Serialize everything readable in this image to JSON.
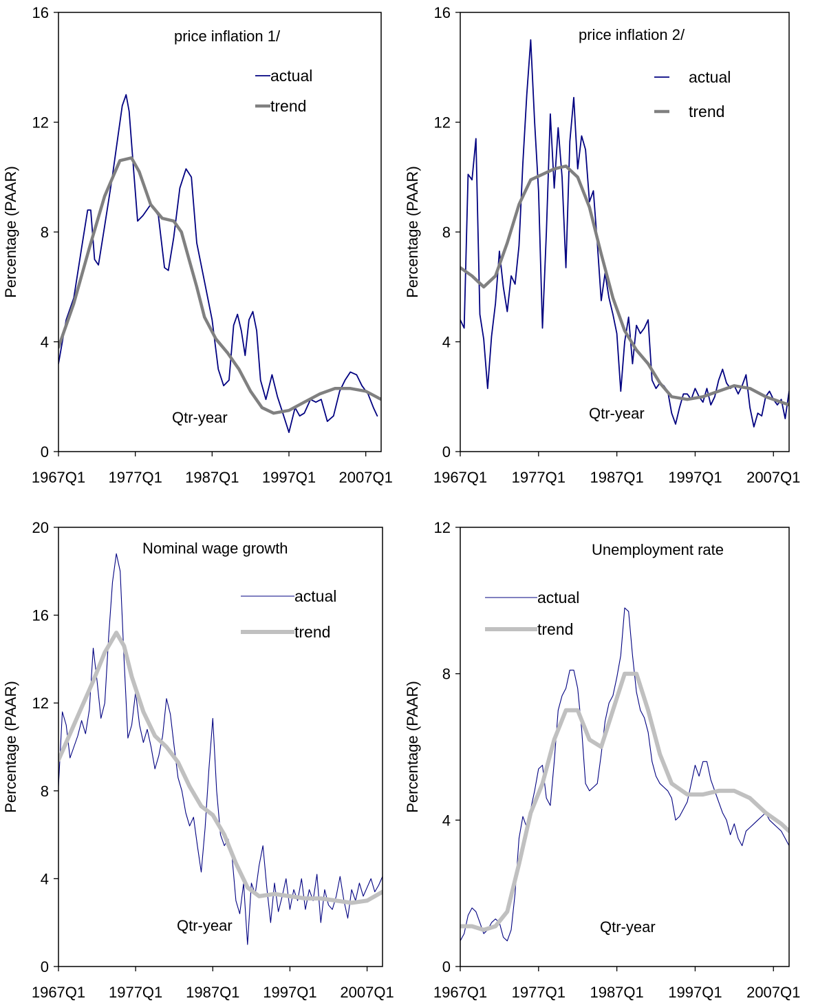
{
  "colors": {
    "actual": "#000080",
    "trend_dark": "#808080",
    "trend_light": "#c0c0c0"
  },
  "chart_data": [
    {
      "type": "line",
      "title": "price inflation 1/",
      "ylabel": "Percentage (PAAR)",
      "axis_note": "Qtr-year",
      "ylim": [
        0,
        16
      ],
      "yticks": [
        "0",
        "4",
        "8",
        "12",
        "16"
      ],
      "xlim": [
        1967,
        2009
      ],
      "xtick_labels": [
        "1967Q1",
        "1977Q1",
        "1987Q1",
        "1997Q1",
        "2007Q1"
      ],
      "xtick_values": [
        1967,
        1977,
        1987,
        1997,
        2007
      ],
      "legend_labels": [
        "actual",
        "trend"
      ],
      "trend_style": "dark",
      "series": [
        {
          "name": "actual",
          "x": [
            1967.0,
            1968.0,
            1969.0,
            1970.0,
            1970.8,
            1971.2,
            1971.7,
            1972.2,
            1973.0,
            1974.0,
            1974.8,
            1975.3,
            1975.8,
            1976.2,
            1976.8,
            1977.3,
            1978.0,
            1979.0,
            1980.0,
            1980.8,
            1981.3,
            1982.0,
            1982.8,
            1983.6,
            1984.3,
            1985.0,
            1986.0,
            1987.0,
            1987.8,
            1988.5,
            1989.2,
            1989.8,
            1990.3,
            1990.8,
            1991.3,
            1991.8,
            1992.3,
            1992.8,
            1993.3,
            1994.0,
            1994.8,
            1995.5,
            1996.2,
            1997.0,
            1997.8,
            1998.4,
            1999.0,
            1999.8,
            2000.5,
            2001.2,
            2002.0,
            2002.8,
            2003.6,
            2004.3,
            2005.0,
            2005.8,
            2006.5,
            2007.3,
            2008.0,
            2008.5
          ],
          "y": [
            3.2,
            4.8,
            5.6,
            7.4,
            8.8,
            8.8,
            7.0,
            6.8,
            8.2,
            10.0,
            11.6,
            12.6,
            13.0,
            12.4,
            10.2,
            8.4,
            8.6,
            9.0,
            8.6,
            6.7,
            6.6,
            7.8,
            9.6,
            10.3,
            10.0,
            7.6,
            6.2,
            4.8,
            3.0,
            2.4,
            2.6,
            4.6,
            5.0,
            4.4,
            3.5,
            4.8,
            5.1,
            4.4,
            2.6,
            1.9,
            2.8,
            2.0,
            1.4,
            0.7,
            1.6,
            1.3,
            1.4,
            1.9,
            1.8,
            1.9,
            1.1,
            1.3,
            2.2,
            2.6,
            2.9,
            2.8,
            2.4,
            2.1,
            1.6,
            1.3
          ]
        },
        {
          "name": "trend",
          "x": [
            1967,
            1969,
            1971,
            1973,
            1975,
            1976.5,
            1977.5,
            1979,
            1980.5,
            1982,
            1983,
            1984,
            1985,
            1986,
            1987.5,
            1989,
            1990.5,
            1992,
            1993.5,
            1995,
            1997,
            1999,
            2001,
            2003,
            2005,
            2007,
            2009
          ],
          "y": [
            3.8,
            5.4,
            7.4,
            9.3,
            10.6,
            10.7,
            10.2,
            9.0,
            8.5,
            8.4,
            8.0,
            7.0,
            6.0,
            4.9,
            4.1,
            3.6,
            3.0,
            2.2,
            1.6,
            1.4,
            1.5,
            1.8,
            2.1,
            2.3,
            2.3,
            2.2,
            1.9
          ]
        }
      ]
    },
    {
      "type": "line",
      "title": "price inflation 2/",
      "ylabel": "Percentage (PAAR)",
      "axis_note": "Qtr-year",
      "ylim": [
        0,
        16
      ],
      "yticks": [
        "0",
        "4",
        "8",
        "12",
        "16"
      ],
      "xlim": [
        1967,
        2009
      ],
      "xtick_labels": [
        "1967Q1",
        "1977Q1",
        "1987Q1",
        "1997Q1",
        "2007Q1"
      ],
      "xtick_values": [
        1967,
        1977,
        1987,
        1997,
        2007
      ],
      "legend_labels": [
        "actual",
        "trend"
      ],
      "trend_style": "dark",
      "series": [
        {
          "name": "actual",
          "x": [
            1967.0,
            1967.5,
            1968.0,
            1968.5,
            1969.0,
            1969.5,
            1970.0,
            1970.5,
            1971.0,
            1971.5,
            1972.0,
            1972.5,
            1973.0,
            1973.5,
            1974.0,
            1974.5,
            1975.0,
            1975.5,
            1976.0,
            1976.5,
            1977.0,
            1977.5,
            1978.0,
            1978.5,
            1979.0,
            1979.5,
            1980.0,
            1980.5,
            1981.0,
            1981.5,
            1982.0,
            1982.5,
            1983.0,
            1983.5,
            1984.0,
            1984.5,
            1985.0,
            1985.5,
            1986.0,
            1986.5,
            1987.0,
            1987.5,
            1988.0,
            1988.5,
            1989.0,
            1989.5,
            1990.0,
            1990.5,
            1991.0,
            1991.5,
            1992.0,
            1992.5,
            1993.0,
            1993.5,
            1994.0,
            1994.5,
            1995.0,
            1995.5,
            1996.0,
            1996.5,
            1997.0,
            1997.5,
            1998.0,
            1998.5,
            1999.0,
            1999.5,
            2000.0,
            2000.5,
            2001.0,
            2001.5,
            2002.0,
            2002.5,
            2003.0,
            2003.5,
            2004.0,
            2004.5,
            2005.0,
            2005.5,
            2006.0,
            2006.5,
            2007.0,
            2007.5,
            2008.0,
            2008.5,
            2009.0
          ],
          "y": [
            4.8,
            4.5,
            10.1,
            9.9,
            11.4,
            5.0,
            4.1,
            2.3,
            4.2,
            5.4,
            7.3,
            6.0,
            5.1,
            6.4,
            6.1,
            7.5,
            10.5,
            13.0,
            15.0,
            12.0,
            9.5,
            4.5,
            8.0,
            12.3,
            9.6,
            11.8,
            10.0,
            6.7,
            11.3,
            12.9,
            10.3,
            11.5,
            11.0,
            9.1,
            9.5,
            7.6,
            5.5,
            6.5,
            5.6,
            5.0,
            4.3,
            2.2,
            4.0,
            4.9,
            3.2,
            4.6,
            4.3,
            4.5,
            4.8,
            2.6,
            2.3,
            2.5,
            2.4,
            2.2,
            1.4,
            1.0,
            1.6,
            2.1,
            2.1,
            1.9,
            2.3,
            2.0,
            1.8,
            2.3,
            1.7,
            2.0,
            2.6,
            3.0,
            2.5,
            2.3,
            2.4,
            2.1,
            2.4,
            2.8,
            1.6,
            0.9,
            1.4,
            1.3,
            2.0,
            2.2,
            1.9,
            1.7,
            1.9,
            1.2,
            2.2
          ]
        },
        {
          "name": "trend",
          "x": [
            1967,
            1968.5,
            1970,
            1971.5,
            1973,
            1974.5,
            1976,
            1977.5,
            1979,
            1980.5,
            1982,
            1983.5,
            1985,
            1986.5,
            1988,
            1989.5,
            1991,
            1992.5,
            1994,
            1996,
            1998,
            2000,
            2002,
            2004,
            2006,
            2008,
            2009
          ],
          "y": [
            6.7,
            6.4,
            6.0,
            6.4,
            7.6,
            9.0,
            9.9,
            10.1,
            10.3,
            10.4,
            10.0,
            8.9,
            7.2,
            5.6,
            4.4,
            3.7,
            3.2,
            2.5,
            2.0,
            1.9,
            2.0,
            2.2,
            2.4,
            2.3,
            2.0,
            1.8,
            1.7
          ]
        }
      ]
    },
    {
      "type": "line",
      "title": "Nominal wage growth",
      "ylabel": "Percentage (PAAR)",
      "axis_note": "Qtr-year",
      "ylim": [
        0,
        20
      ],
      "yticks": [
        "0",
        "4",
        "8",
        "12",
        "16",
        "20"
      ],
      "xlim": [
        1967,
        2009
      ],
      "xtick_labels": [
        "1967Q1",
        "1977Q1",
        "1987Q1",
        "1997Q1",
        "2007Q1"
      ],
      "xtick_values": [
        1967,
        1977,
        1987,
        1997,
        2007
      ],
      "legend_labels": [
        "actual",
        "trend"
      ],
      "trend_style": "light",
      "series": [
        {
          "name": "actual",
          "x": [
            1967.0,
            1967.5,
            1968.0,
            1968.5,
            1969.0,
            1969.5,
            1970.0,
            1970.5,
            1971.0,
            1971.5,
            1972.0,
            1972.5,
            1973.0,
            1973.5,
            1974.0,
            1974.5,
            1975.0,
            1975.5,
            1976.0,
            1976.5,
            1977.0,
            1977.5,
            1978.0,
            1978.5,
            1979.0,
            1979.5,
            1980.0,
            1980.5,
            1981.0,
            1981.5,
            1982.0,
            1982.5,
            1983.0,
            1983.5,
            1984.0,
            1984.5,
            1985.0,
            1985.5,
            1986.0,
            1986.5,
            1987.0,
            1987.5,
            1988.0,
            1988.5,
            1989.0,
            1989.5,
            1990.0,
            1990.5,
            1991.0,
            1991.5,
            1992.0,
            1992.5,
            1993.0,
            1993.5,
            1994.0,
            1994.5,
            1995.0,
            1995.5,
            1996.0,
            1996.5,
            1997.0,
            1997.5,
            1998.0,
            1998.5,
            1999.0,
            1999.5,
            2000.0,
            2000.5,
            2001.0,
            2001.5,
            2002.0,
            2002.5,
            2003.0,
            2003.5,
            2004.0,
            2004.5,
            2005.0,
            2005.5,
            2006.0,
            2006.5,
            2007.0,
            2007.5,
            2008.0,
            2008.5,
            2009.0
          ],
          "y": [
            8.2,
            11.6,
            11.0,
            9.5,
            10.0,
            10.5,
            11.2,
            10.6,
            11.7,
            14.5,
            13.0,
            11.3,
            12.0,
            15.0,
            17.5,
            18.8,
            18.0,
            14.0,
            10.4,
            11.0,
            12.5,
            11.0,
            10.2,
            10.8,
            10.0,
            9.0,
            9.6,
            10.5,
            12.2,
            11.5,
            10.0,
            8.6,
            8.0,
            7.0,
            6.4,
            6.8,
            5.5,
            4.3,
            6.3,
            9.0,
            11.3,
            8.0,
            6.0,
            5.5,
            5.8,
            5.0,
            3.0,
            2.4,
            3.8,
            1.0,
            3.8,
            3.3,
            4.6,
            5.5,
            3.6,
            2.0,
            3.8,
            2.5,
            3.2,
            4.0,
            2.6,
            3.5,
            3.0,
            4.0,
            2.6,
            3.5,
            3.0,
            4.2,
            2.0,
            3.5,
            2.8,
            2.6,
            3.2,
            4.1,
            3.0,
            2.2,
            3.5,
            3.0,
            3.8,
            3.2,
            3.6,
            4.0,
            3.4,
            3.7,
            4.1
          ]
        },
        {
          "name": "trend",
          "x": [
            1967,
            1968.5,
            1970,
            1971.5,
            1973,
            1974.5,
            1975.5,
            1976.5,
            1978,
            1979.5,
            1981,
            1982.5,
            1984,
            1985.5,
            1987,
            1988.5,
            1990,
            1991.5,
            1993,
            1995,
            1997,
            1999,
            2001,
            2003,
            2005,
            2007,
            2009
          ],
          "y": [
            9.4,
            10.6,
            11.8,
            13.0,
            14.3,
            15.2,
            14.6,
            13.2,
            11.6,
            10.5,
            10.0,
            9.3,
            8.2,
            7.3,
            6.9,
            6.0,
            4.7,
            3.6,
            3.2,
            3.3,
            3.2,
            3.1,
            3.1,
            3.0,
            2.9,
            3.0,
            3.4
          ]
        }
      ]
    },
    {
      "type": "line",
      "title": "Unemployment rate",
      "ylabel": "Percentage (PAAR)",
      "axis_note": "Qtr-year",
      "ylim": [
        0,
        12
      ],
      "yticks": [
        "0",
        "4",
        "8",
        "12"
      ],
      "xlim": [
        1967,
        2009
      ],
      "xtick_labels": [
        "1967Q1",
        "1977Q1",
        "1987Q1",
        "1997Q1",
        "2007Q1"
      ],
      "xtick_values": [
        1967,
        1977,
        1987,
        1997,
        2007
      ],
      "legend_labels": [
        "actual",
        "trend"
      ],
      "trend_style": "light",
      "series": [
        {
          "name": "actual",
          "x": [
            1967.0,
            1967.5,
            1968.0,
            1968.5,
            1969.0,
            1969.5,
            1970.0,
            1970.5,
            1971.0,
            1971.5,
            1972.0,
            1972.5,
            1973.0,
            1973.5,
            1974.0,
            1974.5,
            1975.0,
            1975.5,
            1976.0,
            1976.5,
            1977.0,
            1977.5,
            1978.0,
            1978.5,
            1979.0,
            1979.5,
            1980.0,
            1980.5,
            1981.0,
            1981.5,
            1982.0,
            1982.5,
            1983.0,
            1983.5,
            1984.0,
            1984.5,
            1985.0,
            1985.5,
            1986.0,
            1986.5,
            1987.0,
            1987.5,
            1988.0,
            1988.5,
            1989.0,
            1989.5,
            1990.0,
            1990.5,
            1991.0,
            1991.5,
            1992.0,
            1992.5,
            1993.0,
            1993.5,
            1994.0,
            1994.5,
            1995.0,
            1995.5,
            1996.0,
            1996.5,
            1997.0,
            1997.5,
            1998.0,
            1998.5,
            1999.0,
            1999.5,
            2000.0,
            2000.5,
            2001.0,
            2001.5,
            2002.0,
            2002.5,
            2003.0,
            2003.5,
            2004.0,
            2004.5,
            2005.0,
            2005.5,
            2006.0,
            2006.5,
            2007.0,
            2007.5,
            2008.0,
            2008.5,
            2009.0
          ],
          "y": [
            0.7,
            0.9,
            1.4,
            1.6,
            1.5,
            1.2,
            0.9,
            1.0,
            1.2,
            1.3,
            1.2,
            0.8,
            0.7,
            1.0,
            2.0,
            3.5,
            4.1,
            3.8,
            4.3,
            4.8,
            5.4,
            5.5,
            4.6,
            4.4,
            5.6,
            7.0,
            7.4,
            7.6,
            8.1,
            8.1,
            7.6,
            6.5,
            5.0,
            4.8,
            4.9,
            5.0,
            5.8,
            6.7,
            7.2,
            7.4,
            7.9,
            8.5,
            9.8,
            9.7,
            8.5,
            7.5,
            7.0,
            6.8,
            6.4,
            5.6,
            5.2,
            5.0,
            4.9,
            4.8,
            4.6,
            4.0,
            4.1,
            4.3,
            4.5,
            5.0,
            5.5,
            5.2,
            5.6,
            5.6,
            5.1,
            4.8,
            4.5,
            4.2,
            4.0,
            3.6,
            3.9,
            3.5,
            3.3,
            3.7,
            3.8,
            3.9,
            4.0,
            4.1,
            4.2,
            4.0,
            3.9,
            3.8,
            3.7,
            3.5,
            3.3
          ]
        },
        {
          "name": "trend",
          "x": [
            1967,
            1968.5,
            1970,
            1971.5,
            1973,
            1974.5,
            1976,
            1977.5,
            1979,
            1980.5,
            1982,
            1983.5,
            1985,
            1986.5,
            1988,
            1989.5,
            1991,
            1992.5,
            1994,
            1996,
            1998,
            2000,
            2002,
            2004,
            2006,
            2008,
            2009
          ],
          "y": [
            1.1,
            1.1,
            1.0,
            1.1,
            1.5,
            2.8,
            4.2,
            5.0,
            6.2,
            7.0,
            7.0,
            6.2,
            6.0,
            7.0,
            8.0,
            8.0,
            7.0,
            5.8,
            5.0,
            4.7,
            4.7,
            4.8,
            4.8,
            4.6,
            4.2,
            3.9,
            3.7
          ]
        }
      ]
    }
  ]
}
